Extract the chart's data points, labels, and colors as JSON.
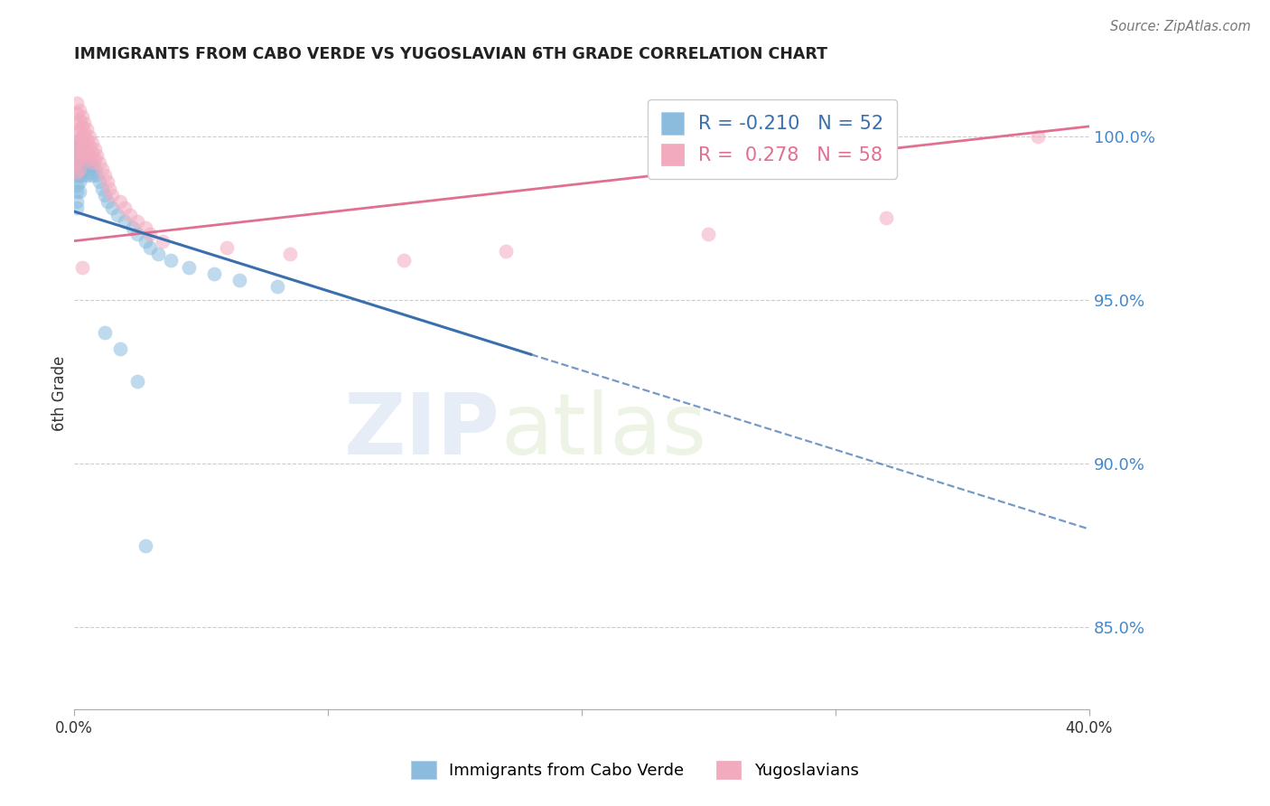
{
  "title": "IMMIGRANTS FROM CABO VERDE VS YUGOSLAVIAN 6TH GRADE CORRELATION CHART",
  "source": "Source: ZipAtlas.com",
  "ylabel": "6th Grade",
  "ytick_labels": [
    "100.0%",
    "95.0%",
    "90.0%",
    "85.0%"
  ],
  "ytick_values": [
    1.0,
    0.95,
    0.9,
    0.85
  ],
  "xlim": [
    0.0,
    0.4
  ],
  "ylim": [
    0.825,
    1.018
  ],
  "cabo_verde_color": "#8bbcde",
  "yugoslavian_color": "#f2aabe",
  "cabo_verde_line_color": "#3a6fad",
  "yugoslavian_line_color": "#e07090",
  "watermark_zip": "ZIP",
  "watermark_atlas": "atlas",
  "cabo_verde_R": -0.21,
  "cabo_verde_N": 52,
  "yugoslavian_R": 0.278,
  "yugoslavian_N": 58,
  "cv_line_x": [
    0.0,
    0.4
  ],
  "cv_line_y": [
    0.977,
    0.88
  ],
  "cv_line_solid_end": 0.18,
  "yu_line_x": [
    0.0,
    0.4
  ],
  "yu_line_y": [
    0.968,
    1.003
  ],
  "cabo_verde_points": [
    [
      0.001,
      0.9985
    ],
    [
      0.001,
      0.996
    ],
    [
      0.001,
      0.993
    ],
    [
      0.001,
      0.99
    ],
    [
      0.001,
      0.988
    ],
    [
      0.001,
      0.985
    ],
    [
      0.001,
      0.983
    ],
    [
      0.001,
      0.98
    ],
    [
      0.001,
      0.978
    ],
    [
      0.002,
      0.9975
    ],
    [
      0.002,
      0.995
    ],
    [
      0.002,
      0.992
    ],
    [
      0.002,
      0.988
    ],
    [
      0.002,
      0.986
    ],
    [
      0.002,
      0.983
    ],
    [
      0.003,
      0.997
    ],
    [
      0.003,
      0.994
    ],
    [
      0.003,
      0.991
    ],
    [
      0.003,
      0.988
    ],
    [
      0.004,
      0.996
    ],
    [
      0.004,
      0.993
    ],
    [
      0.004,
      0.99
    ],
    [
      0.005,
      0.994
    ],
    [
      0.005,
      0.991
    ],
    [
      0.005,
      0.988
    ],
    [
      0.006,
      0.992
    ],
    [
      0.006,
      0.989
    ],
    [
      0.007,
      0.991
    ],
    [
      0.007,
      0.988
    ],
    [
      0.008,
      0.99
    ],
    [
      0.009,
      0.988
    ],
    [
      0.01,
      0.986
    ],
    [
      0.011,
      0.984
    ],
    [
      0.012,
      0.982
    ],
    [
      0.013,
      0.98
    ],
    [
      0.015,
      0.978
    ],
    [
      0.017,
      0.976
    ],
    [
      0.02,
      0.974
    ],
    [
      0.023,
      0.972
    ],
    [
      0.025,
      0.97
    ],
    [
      0.028,
      0.968
    ],
    [
      0.03,
      0.966
    ],
    [
      0.033,
      0.964
    ],
    [
      0.038,
      0.962
    ],
    [
      0.045,
      0.96
    ],
    [
      0.055,
      0.958
    ],
    [
      0.065,
      0.956
    ],
    [
      0.08,
      0.954
    ],
    [
      0.012,
      0.94
    ],
    [
      0.018,
      0.935
    ],
    [
      0.025,
      0.925
    ],
    [
      0.028,
      0.875
    ]
  ],
  "yugoslavian_points": [
    [
      0.001,
      1.01
    ],
    [
      0.001,
      1.007
    ],
    [
      0.001,
      1.004
    ],
    [
      0.001,
      1.001
    ],
    [
      0.001,
      0.998
    ],
    [
      0.001,
      0.995
    ],
    [
      0.001,
      0.992
    ],
    [
      0.001,
      0.989
    ],
    [
      0.002,
      1.008
    ],
    [
      0.002,
      1.005
    ],
    [
      0.002,
      1.002
    ],
    [
      0.002,
      0.999
    ],
    [
      0.002,
      0.996
    ],
    [
      0.002,
      0.993
    ],
    [
      0.002,
      0.99
    ],
    [
      0.003,
      1.006
    ],
    [
      0.003,
      1.003
    ],
    [
      0.003,
      1.0
    ],
    [
      0.003,
      0.997
    ],
    [
      0.003,
      0.994
    ],
    [
      0.004,
      1.004
    ],
    [
      0.004,
      1.001
    ],
    [
      0.004,
      0.998
    ],
    [
      0.004,
      0.995
    ],
    [
      0.005,
      1.002
    ],
    [
      0.005,
      0.999
    ],
    [
      0.005,
      0.996
    ],
    [
      0.005,
      0.993
    ],
    [
      0.006,
      1.0
    ],
    [
      0.006,
      0.997
    ],
    [
      0.006,
      0.994
    ],
    [
      0.007,
      0.998
    ],
    [
      0.007,
      0.995
    ],
    [
      0.007,
      0.992
    ],
    [
      0.008,
      0.996
    ],
    [
      0.008,
      0.993
    ],
    [
      0.009,
      0.994
    ],
    [
      0.01,
      0.992
    ],
    [
      0.011,
      0.99
    ],
    [
      0.012,
      0.988
    ],
    [
      0.013,
      0.986
    ],
    [
      0.014,
      0.984
    ],
    [
      0.015,
      0.982
    ],
    [
      0.018,
      0.98
    ],
    [
      0.02,
      0.978
    ],
    [
      0.022,
      0.976
    ],
    [
      0.025,
      0.974
    ],
    [
      0.028,
      0.972
    ],
    [
      0.03,
      0.97
    ],
    [
      0.035,
      0.968
    ],
    [
      0.06,
      0.966
    ],
    [
      0.085,
      0.964
    ],
    [
      0.13,
      0.962
    ],
    [
      0.17,
      0.965
    ],
    [
      0.25,
      0.97
    ],
    [
      0.32,
      0.975
    ],
    [
      0.38,
      1.0
    ],
    [
      0.003,
      0.96
    ]
  ]
}
